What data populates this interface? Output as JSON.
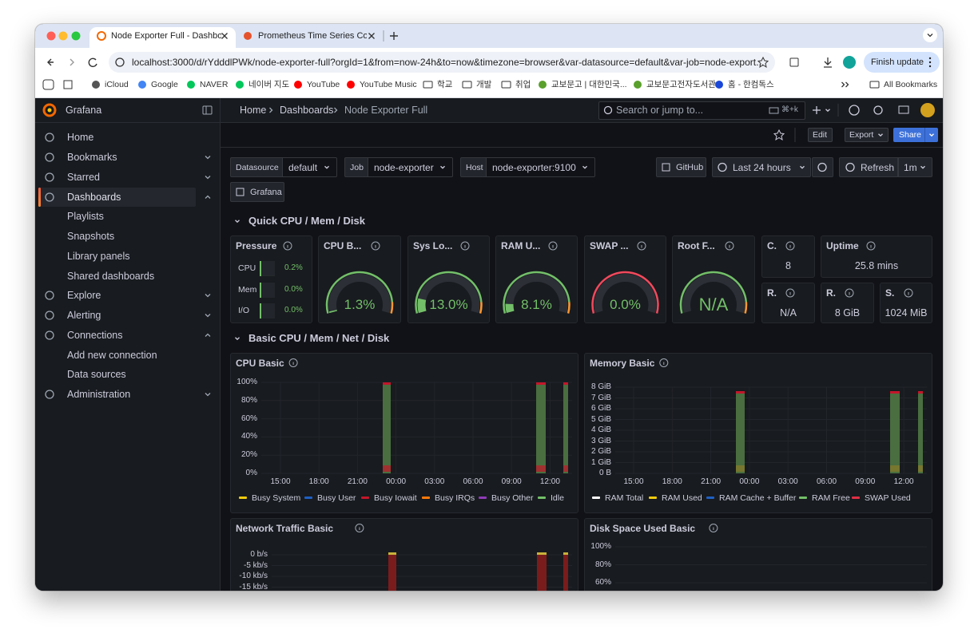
{
  "browser": {
    "tabs": [
      "Node Exporter Full - Dashboa",
      "Prometheus Time Series Colle"
    ],
    "url": "localhost:3000/d/rYdddlPWk/node-exporter-full?orgId=1&from=now-24h&to=now&timezone=browser&var-datasource=default&var-job=node-export...",
    "finish_update": "Finish update",
    "bookmarks": [
      "iCloud",
      "Google",
      "NAVER",
      "네이버 지도",
      "YouTube",
      "YouTube Music",
      "학교",
      "개발",
      "취업",
      "교보문고 | 대한민국...",
      "교보문고전자도서관",
      "홈 - 한컴독스"
    ],
    "all_bookmarks": "All Bookmarks"
  },
  "grafana": {
    "brand": "Grafana",
    "nav": [
      "Home",
      "Bookmarks",
      "Starred",
      "Dashboards",
      "Playlists",
      "Snapshots",
      "Library panels",
      "Shared dashboards",
      "Explore",
      "Alerting",
      "Connections",
      "Add new connection",
      "Data sources",
      "Administration"
    ],
    "breadcrumbs": [
      "Home",
      "Dashboards",
      "Node Exporter Full"
    ],
    "search": "Search or jump to...",
    "shortcut": "⌘+k",
    "actions": [
      "Edit",
      "Export",
      "Share"
    ],
    "variables": [
      {
        "label": "Datasource",
        "value": "default"
      },
      {
        "label": "Job",
        "value": "node-exporter"
      },
      {
        "label": "Host",
        "value": "node-exporter:9100"
      }
    ],
    "links": [
      "GitHub",
      "Grafana"
    ],
    "time_range": "Last 24 hours",
    "refresh": "Refresh",
    "interval": "1m",
    "rows": [
      "Quick CPU / Mem / Disk",
      "Basic CPU / Mem / Net / Disk"
    ],
    "pressure": {
      "title": "Pressure",
      "items": [
        {
          "label": "CPU",
          "value": 0.2,
          "value_label": "0.2%"
        },
        {
          "label": "Mem",
          "value": 0.0,
          "value_label": "0.0%"
        },
        {
          "label": "I/O",
          "value": 0.0,
          "value_label": "0.0%"
        }
      ]
    },
    "gauges": [
      {
        "title": "CPU B...",
        "value": 1.3,
        "value_label": "1.3%"
      },
      {
        "title": "Sys Lo...",
        "value": 13.0,
        "value_label": "13.0%"
      },
      {
        "title": "RAM U...",
        "value": 8.1,
        "value_label": "8.1%"
      },
      {
        "title": "SWAP ...",
        "value": 0.0,
        "value_label": "0.0%"
      },
      {
        "title": "Root F...",
        "value": null,
        "value_label": "N/A"
      }
    ],
    "stats": [
      {
        "title": "C.",
        "value": "8"
      },
      {
        "title": "Uptime",
        "value": "25.8 mins"
      },
      {
        "title": "R.",
        "value": "N/A"
      },
      {
        "title": "R.",
        "value": "8 GiB"
      },
      {
        "title": "S.",
        "value": "1024 MiB"
      }
    ],
    "panels": [
      {
        "title": "CPU Basic",
        "y_labels": [
          "100%",
          "80%",
          "60%",
          "40%",
          "20%",
          "0%"
        ],
        "x_labels": [
          "15:00",
          "18:00",
          "21:00",
          "00:00",
          "03:00",
          "06:00",
          "09:00",
          "12:00"
        ],
        "legend": [
          "Busy System",
          "Busy User",
          "Busy Iowait",
          "Busy IRQs",
          "Busy Other",
          "Idle"
        ]
      },
      {
        "title": "Memory Basic",
        "y_labels": [
          "8 GiB",
          "7 GiB",
          "6 GiB",
          "5 GiB",
          "4 GiB",
          "3 GiB",
          "2 GiB",
          "1 GiB",
          "0 B"
        ],
        "x_labels": [
          "15:00",
          "18:00",
          "21:00",
          "00:00",
          "03:00",
          "06:00",
          "09:00",
          "12:00"
        ],
        "legend": [
          "RAM Total",
          "RAM Used",
          "RAM Cache + Buffer",
          "RAM Free",
          "SWAP Used"
        ]
      },
      {
        "title": "Network Traffic Basic",
        "y_labels": [
          "0 b/s",
          "-5 kb/s",
          "-10 kb/s",
          "-15 kb/s"
        ]
      },
      {
        "title": "Disk Space Used Basic",
        "y_labels": [
          "100%",
          "80%",
          "60%"
        ]
      }
    ]
  }
}
